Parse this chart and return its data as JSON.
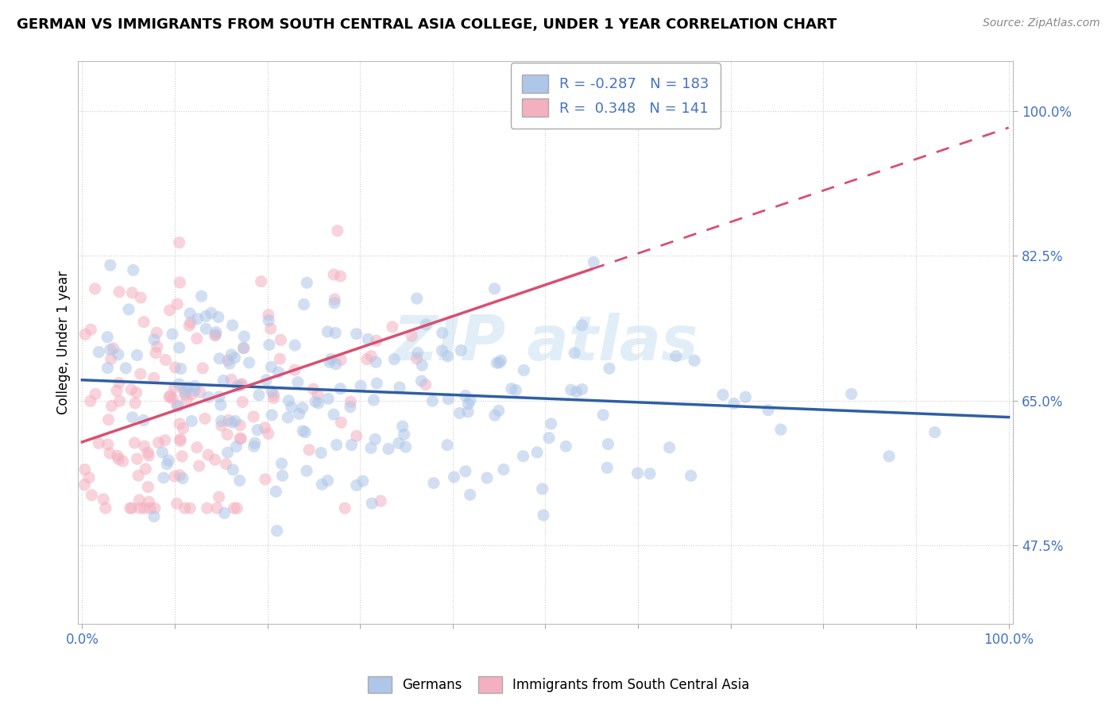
{
  "title": "GERMAN VS IMMIGRANTS FROM SOUTH CENTRAL ASIA COLLEGE, UNDER 1 YEAR CORRELATION CHART",
  "source": "Source: ZipAtlas.com",
  "ylabel": "College, Under 1 year",
  "xlim": [
    -0.005,
    1.005
  ],
  "ylim": [
    0.38,
    1.06
  ],
  "yticks": [
    0.475,
    0.65,
    0.825,
    1.0
  ],
  "ytick_labels": [
    "47.5%",
    "65.0%",
    "82.5%",
    "100.0%"
  ],
  "xtick_positions": [
    0.0,
    0.1,
    0.2,
    0.3,
    0.4,
    0.5,
    0.6,
    0.7,
    0.8,
    0.9,
    1.0
  ],
  "r_blue": -0.287,
  "n_blue": 183,
  "r_pink": 0.348,
  "n_pink": 141,
  "blue_scatter_color": "#aec6e8",
  "pink_scatter_color": "#f4afc0",
  "blue_line_color": "#2e5fa3",
  "pink_line_color": "#d94f70",
  "legend_label_blue": "Germans",
  "legend_label_pink": "Immigrants from South Central Asia",
  "watermark_color": "#c5dff0",
  "background_color": "#ffffff",
  "grid_color": "#cccccc",
  "tick_color": "#4472c4",
  "title_fontsize": 13,
  "axis_fontsize": 12,
  "scatter_size": 120,
  "scatter_alpha": 0.55,
  "blue_intercept": 0.675,
  "blue_slope": -0.045,
  "pink_intercept": 0.6,
  "pink_slope": 0.38
}
